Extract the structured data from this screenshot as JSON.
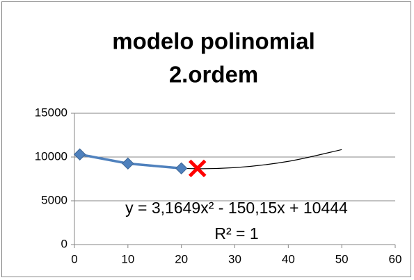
{
  "chart_data": {
    "type": "scatter",
    "title": [
      "modelo polinomial",
      "2.ordem"
    ],
    "xlim": [
      0,
      60
    ],
    "xticks": [
      0,
      10,
      20,
      30,
      40,
      50,
      60
    ],
    "ylim": [
      0,
      15000
    ],
    "yticks": [
      0,
      5000,
      10000,
      15000
    ],
    "grid": true,
    "series": [
      {
        "color": "#4f81bd",
        "x": [
          1,
          10,
          20
        ],
        "values": [
          10297,
          9259,
          8707
        ]
      }
    ],
    "prediction": {
      "color": "#ff0000",
      "x": 23,
      "value": 8700
    },
    "trendline": {
      "color": "#000000",
      "x": [
        1,
        10,
        20,
        30,
        40,
        50
      ],
      "values": [
        10297,
        9259,
        8707,
        8788,
        9503,
        10849
      ]
    },
    "annotations": [
      "y = 3,1649x² - 150,15x + 10444",
      "R² = 1"
    ]
  }
}
